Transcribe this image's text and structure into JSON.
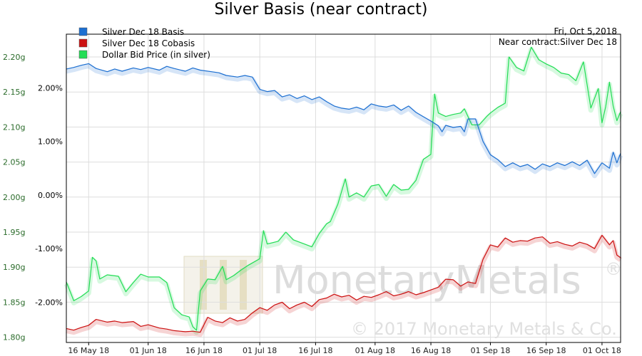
{
  "chart_data": {
    "type": "line",
    "title": "Silver Basis (near contract)",
    "annotation": [
      "Fri, Oct 5,2018",
      "Near contract:Silver Dec 18"
    ],
    "watermark": {
      "name": "MonetaryMetals",
      "copyright": "© 2017 Monetary Metals & Co.",
      "registered": "®"
    },
    "x_range": [
      "2018-05-10",
      "2018-10-06"
    ],
    "x_ticks": [
      {
        "date": "2018-05-16",
        "label": "16 May 18"
      },
      {
        "date": "2018-06-01",
        "label": "01 Jun 18"
      },
      {
        "date": "2018-06-16",
        "label": "16 Jun 18"
      },
      {
        "date": "2018-07-01",
        "label": "01 Jul 18"
      },
      {
        "date": "2018-07-16",
        "label": "16 Jul 18"
      },
      {
        "date": "2018-08-01",
        "label": "01 Aug 18"
      },
      {
        "date": "2018-08-16",
        "label": "16 Aug 18"
      },
      {
        "date": "2018-09-01",
        "label": "01 Sep 18"
      },
      {
        "date": "2018-09-16",
        "label": "16 Sep 18"
      },
      {
        "date": "2018-10-01",
        "label": "01 Oct 18"
      }
    ],
    "y_left": {
      "unit": "g",
      "range": [
        1.7925,
        2.2325
      ],
      "ticks": [
        "2.20g",
        "2.15g",
        "2.10g",
        "2.05g",
        "2.00g",
        "1.95g",
        "1.90g",
        "1.85g",
        "1.80g"
      ]
    },
    "y_pct": {
      "range": [
        -2.75,
        3.0
      ],
      "ticks": [
        "2.00%",
        "1.00%",
        "0.00%",
        "-1.00%",
        "-2.00%"
      ]
    },
    "grid": true,
    "legend_position": "top-left",
    "series": [
      {
        "name": "Silver Dec 18 Basis",
        "color": "#1c6fd1",
        "axis": "pct",
        "points": [
          [
            "2018-05-10",
            2.35
          ],
          [
            "2018-05-12",
            2.38
          ],
          [
            "2018-05-14",
            2.42
          ],
          [
            "2018-05-16",
            2.45
          ],
          [
            "2018-05-18",
            2.36
          ],
          [
            "2018-05-21",
            2.3
          ],
          [
            "2018-05-23",
            2.35
          ],
          [
            "2018-05-25",
            2.31
          ],
          [
            "2018-05-28",
            2.37
          ],
          [
            "2018-05-30",
            2.34
          ],
          [
            "2018-06-01",
            2.38
          ],
          [
            "2018-06-04",
            2.33
          ],
          [
            "2018-06-06",
            2.4
          ],
          [
            "2018-06-08",
            2.36
          ],
          [
            "2018-06-11",
            2.31
          ],
          [
            "2018-06-13",
            2.37
          ],
          [
            "2018-06-15",
            2.33
          ],
          [
            "2018-06-18",
            2.3
          ],
          [
            "2018-06-20",
            2.28
          ],
          [
            "2018-06-22",
            2.23
          ],
          [
            "2018-06-25",
            2.2
          ],
          [
            "2018-06-27",
            2.23
          ],
          [
            "2018-06-29",
            2.2
          ],
          [
            "2018-07-01",
            1.97
          ],
          [
            "2018-07-03",
            1.93
          ],
          [
            "2018-07-05",
            1.95
          ],
          [
            "2018-07-07",
            1.83
          ],
          [
            "2018-07-09",
            1.87
          ],
          [
            "2018-07-11",
            1.8
          ],
          [
            "2018-07-13",
            1.85
          ],
          [
            "2018-07-15",
            1.78
          ],
          [
            "2018-07-17",
            1.83
          ],
          [
            "2018-07-19",
            1.74
          ],
          [
            "2018-07-21",
            1.66
          ],
          [
            "2018-07-23",
            1.62
          ],
          [
            "2018-07-25",
            1.6
          ],
          [
            "2018-07-27",
            1.64
          ],
          [
            "2018-07-29",
            1.59
          ],
          [
            "2018-07-31",
            1.7
          ],
          [
            "2018-08-02",
            1.66
          ],
          [
            "2018-08-04",
            1.64
          ],
          [
            "2018-08-06",
            1.68
          ],
          [
            "2018-08-08",
            1.58
          ],
          [
            "2018-08-10",
            1.66
          ],
          [
            "2018-08-12",
            1.54
          ],
          [
            "2018-08-14",
            1.46
          ],
          [
            "2018-08-16",
            1.38
          ],
          [
            "2018-08-18",
            1.29
          ],
          [
            "2018-08-19",
            1.18
          ],
          [
            "2018-08-20",
            1.3
          ],
          [
            "2018-08-22",
            1.26
          ],
          [
            "2018-08-24",
            1.28
          ],
          [
            "2018-08-25",
            1.18
          ],
          [
            "2018-08-26",
            1.42
          ],
          [
            "2018-08-28",
            1.42
          ],
          [
            "2018-08-30",
            1.0
          ],
          [
            "2018-09-01",
            0.75
          ],
          [
            "2018-09-03",
            0.66
          ],
          [
            "2018-09-05",
            0.53
          ],
          [
            "2018-09-07",
            0.6
          ],
          [
            "2018-09-09",
            0.53
          ],
          [
            "2018-09-11",
            0.57
          ],
          [
            "2018-09-13",
            0.48
          ],
          [
            "2018-09-15",
            0.58
          ],
          [
            "2018-09-17",
            0.53
          ],
          [
            "2018-09-19",
            0.6
          ],
          [
            "2018-09-21",
            0.55
          ],
          [
            "2018-09-23",
            0.62
          ],
          [
            "2018-09-25",
            0.55
          ],
          [
            "2018-09-27",
            0.65
          ],
          [
            "2018-09-29",
            0.4
          ],
          [
            "2018-10-01",
            0.6
          ],
          [
            "2018-10-03",
            0.5
          ],
          [
            "2018-10-04",
            0.8
          ],
          [
            "2018-10-05",
            0.6
          ],
          [
            "2018-10-06",
            0.78
          ]
        ]
      },
      {
        "name": "Silver Dec 18 Cobasis",
        "color": "#cc1111",
        "axis": "pct",
        "points": [
          [
            "2018-05-10",
            -2.49
          ],
          [
            "2018-05-12",
            -2.52
          ],
          [
            "2018-05-14",
            -2.47
          ],
          [
            "2018-05-16",
            -2.43
          ],
          [
            "2018-05-18",
            -2.32
          ],
          [
            "2018-05-21",
            -2.37
          ],
          [
            "2018-05-23",
            -2.35
          ],
          [
            "2018-05-25",
            -2.38
          ],
          [
            "2018-05-28",
            -2.36
          ],
          [
            "2018-05-30",
            -2.45
          ],
          [
            "2018-06-01",
            -2.42
          ],
          [
            "2018-06-04",
            -2.48
          ],
          [
            "2018-06-06",
            -2.5
          ],
          [
            "2018-06-08",
            -2.53
          ],
          [
            "2018-06-11",
            -2.55
          ],
          [
            "2018-06-13",
            -2.54
          ],
          [
            "2018-06-15",
            -2.56
          ],
          [
            "2018-06-17",
            -2.28
          ],
          [
            "2018-06-19",
            -2.35
          ],
          [
            "2018-06-21",
            -2.38
          ],
          [
            "2018-06-23",
            -2.29
          ],
          [
            "2018-06-25",
            -2.35
          ],
          [
            "2018-06-27",
            -2.32
          ],
          [
            "2018-06-29",
            -2.2
          ],
          [
            "2018-07-01",
            -2.1
          ],
          [
            "2018-07-03",
            -2.15
          ],
          [
            "2018-07-05",
            -2.05
          ],
          [
            "2018-07-07",
            -2.0
          ],
          [
            "2018-07-09",
            -2.12
          ],
          [
            "2018-07-11",
            -2.05
          ],
          [
            "2018-07-13",
            -2.0
          ],
          [
            "2018-07-15",
            -2.08
          ],
          [
            "2018-07-17",
            -1.95
          ],
          [
            "2018-07-19",
            -1.92
          ],
          [
            "2018-07-21",
            -1.85
          ],
          [
            "2018-07-23",
            -1.9
          ],
          [
            "2018-07-25",
            -1.87
          ],
          [
            "2018-07-27",
            -1.96
          ],
          [
            "2018-07-29",
            -1.89
          ],
          [
            "2018-07-31",
            -1.91
          ],
          [
            "2018-08-02",
            -1.86
          ],
          [
            "2018-08-04",
            -1.8
          ],
          [
            "2018-08-06",
            -1.88
          ],
          [
            "2018-08-08",
            -1.85
          ],
          [
            "2018-08-10",
            -1.8
          ],
          [
            "2018-08-12",
            -1.86
          ],
          [
            "2018-08-14",
            -1.82
          ],
          [
            "2018-08-16",
            -1.77
          ],
          [
            "2018-08-18",
            -1.72
          ],
          [
            "2018-08-20",
            -1.57
          ],
          [
            "2018-08-22",
            -1.58
          ],
          [
            "2018-08-24",
            -1.7
          ],
          [
            "2018-08-26",
            -1.62
          ],
          [
            "2018-08-28",
            -1.65
          ],
          [
            "2018-08-30",
            -1.2
          ],
          [
            "2018-09-01",
            -0.93
          ],
          [
            "2018-09-03",
            -0.97
          ],
          [
            "2018-09-05",
            -0.8
          ],
          [
            "2018-09-07",
            -0.88
          ],
          [
            "2018-09-09",
            -0.85
          ],
          [
            "2018-09-11",
            -0.86
          ],
          [
            "2018-09-13",
            -0.8
          ],
          [
            "2018-09-15",
            -0.78
          ],
          [
            "2018-09-17",
            -0.9
          ],
          [
            "2018-09-19",
            -0.87
          ],
          [
            "2018-09-21",
            -0.92
          ],
          [
            "2018-09-23",
            -0.95
          ],
          [
            "2018-09-25",
            -0.88
          ],
          [
            "2018-09-27",
            -0.92
          ],
          [
            "2018-09-29",
            -1.0
          ],
          [
            "2018-10-01",
            -0.75
          ],
          [
            "2018-10-03",
            -0.93
          ],
          [
            "2018-10-04",
            -0.85
          ],
          [
            "2018-10-05",
            -1.12
          ],
          [
            "2018-10-06",
            -1.17
          ]
        ]
      },
      {
        "name": "Dollar Bid Price (in silver)",
        "color": "#22dd55",
        "axis": "g",
        "points": [
          [
            "2018-05-10",
            1.879
          ],
          [
            "2018-05-12",
            1.852
          ],
          [
            "2018-05-14",
            1.858
          ],
          [
            "2018-05-16",
            1.866
          ],
          [
            "2018-05-17",
            1.914
          ],
          [
            "2018-05-18",
            1.909
          ],
          [
            "2018-05-19",
            1.883
          ],
          [
            "2018-05-21",
            1.889
          ],
          [
            "2018-05-24",
            1.887
          ],
          [
            "2018-05-26",
            1.865
          ],
          [
            "2018-05-28",
            1.878
          ],
          [
            "2018-05-30",
            1.89
          ],
          [
            "2018-06-01",
            1.886
          ],
          [
            "2018-06-04",
            1.886
          ],
          [
            "2018-06-06",
            1.878
          ],
          [
            "2018-06-08",
            1.842
          ],
          [
            "2018-06-10",
            1.832
          ],
          [
            "2018-06-12",
            1.829
          ],
          [
            "2018-06-13",
            1.815
          ],
          [
            "2018-06-14",
            1.81
          ],
          [
            "2018-06-15",
            1.866
          ],
          [
            "2018-06-17",
            1.883
          ],
          [
            "2018-06-19",
            1.882
          ],
          [
            "2018-06-21",
            1.901
          ],
          [
            "2018-06-22",
            1.882
          ],
          [
            "2018-06-24",
            1.888
          ],
          [
            "2018-06-26",
            1.896
          ],
          [
            "2018-06-28",
            1.903
          ],
          [
            "2018-07-01",
            1.912
          ],
          [
            "2018-07-02",
            1.952
          ],
          [
            "2018-07-03",
            1.933
          ],
          [
            "2018-07-06",
            1.937
          ],
          [
            "2018-07-08",
            1.95
          ],
          [
            "2018-07-10",
            1.939
          ],
          [
            "2018-07-13",
            1.933
          ],
          [
            "2018-07-15",
            1.929
          ],
          [
            "2018-07-17",
            1.948
          ],
          [
            "2018-07-19",
            1.962
          ],
          [
            "2018-07-20",
            1.965
          ],
          [
            "2018-07-22",
            1.99
          ],
          [
            "2018-07-24",
            2.026
          ],
          [
            "2018-07-25",
            2.0
          ],
          [
            "2018-07-27",
            2.006
          ],
          [
            "2018-07-29",
            2.0
          ],
          [
            "2018-07-31",
            2.016
          ],
          [
            "2018-08-02",
            2.018
          ],
          [
            "2018-08-04",
            2.001
          ],
          [
            "2018-08-06",
            2.018
          ],
          [
            "2018-08-08",
            2.01
          ],
          [
            "2018-08-10",
            2.011
          ],
          [
            "2018-08-12",
            2.024
          ],
          [
            "2018-08-14",
            2.054
          ],
          [
            "2018-08-16",
            2.061
          ],
          [
            "2018-08-17",
            2.147
          ],
          [
            "2018-08-18",
            2.12
          ],
          [
            "2018-08-20",
            2.115
          ],
          [
            "2018-08-22",
            2.118
          ],
          [
            "2018-08-24",
            2.12
          ],
          [
            "2018-08-25",
            2.126
          ],
          [
            "2018-08-27",
            2.103
          ],
          [
            "2018-08-29",
            2.103
          ],
          [
            "2018-08-31",
            2.115
          ],
          [
            "2018-09-01",
            2.12
          ],
          [
            "2018-09-03",
            2.128
          ],
          [
            "2018-09-05",
            2.134
          ],
          [
            "2018-09-06",
            2.2
          ],
          [
            "2018-09-08",
            2.185
          ],
          [
            "2018-09-10",
            2.18
          ],
          [
            "2018-09-12",
            2.214
          ],
          [
            "2018-09-14",
            2.196
          ],
          [
            "2018-09-16",
            2.19
          ],
          [
            "2018-09-18",
            2.185
          ],
          [
            "2018-09-20",
            2.177
          ],
          [
            "2018-09-22",
            2.175
          ],
          [
            "2018-09-24",
            2.166
          ],
          [
            "2018-09-26",
            2.193
          ],
          [
            "2018-09-28",
            2.127
          ],
          [
            "2018-09-30",
            2.155
          ],
          [
            "2018-10-01",
            2.106
          ],
          [
            "2018-10-02",
            2.129
          ],
          [
            "2018-10-03",
            2.164
          ],
          [
            "2018-10-04",
            2.13
          ],
          [
            "2018-10-05",
            2.109
          ],
          [
            "2018-10-06",
            2.122
          ]
        ]
      }
    ]
  }
}
